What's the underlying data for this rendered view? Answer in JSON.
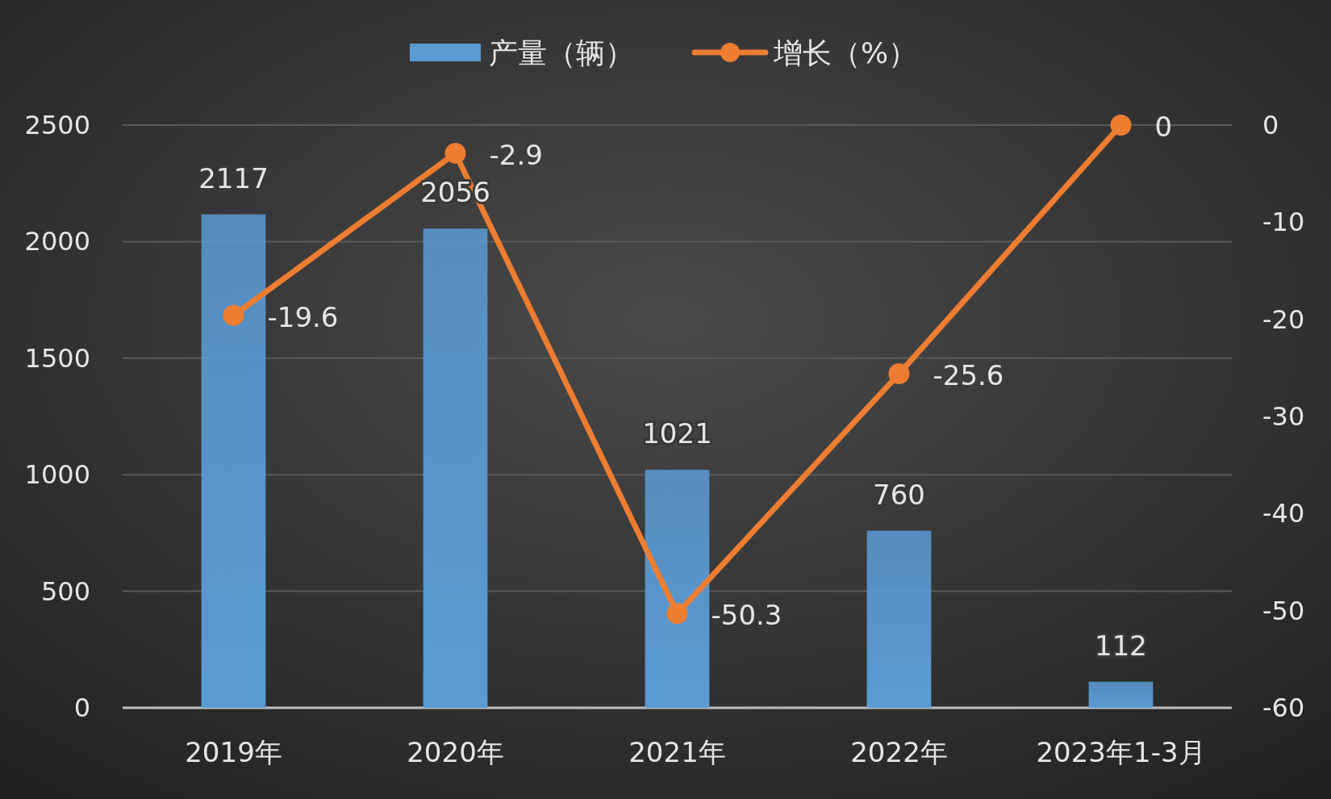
{
  "chart_data": {
    "type": "bar",
    "categories": [
      "2019年",
      "2020年",
      "2021年",
      "2022年",
      "2023年1-3月"
    ],
    "series": [
      {
        "name": "产量（辆）",
        "color": "#5b9bd5",
        "values": [
          2117,
          2056,
          1021,
          760,
          112
        ]
      },
      {
        "name": "增长（%）",
        "type": "line",
        "axis": "y2",
        "color": "#ed7d31",
        "marker": "circle",
        "values": [
          -19.6,
          -2.9,
          -50.3,
          -25.6,
          0
        ]
      }
    ],
    "ylim": [
      0,
      2500
    ],
    "yticks": [
      0,
      500,
      1000,
      1500,
      2000,
      2500
    ],
    "y2lim": [
      -60,
      0
    ],
    "y2ticks": [
      -60,
      -50,
      -40,
      -30,
      -20,
      -10,
      0
    ],
    "grid": "y",
    "legend": "top",
    "data_labels": true
  }
}
